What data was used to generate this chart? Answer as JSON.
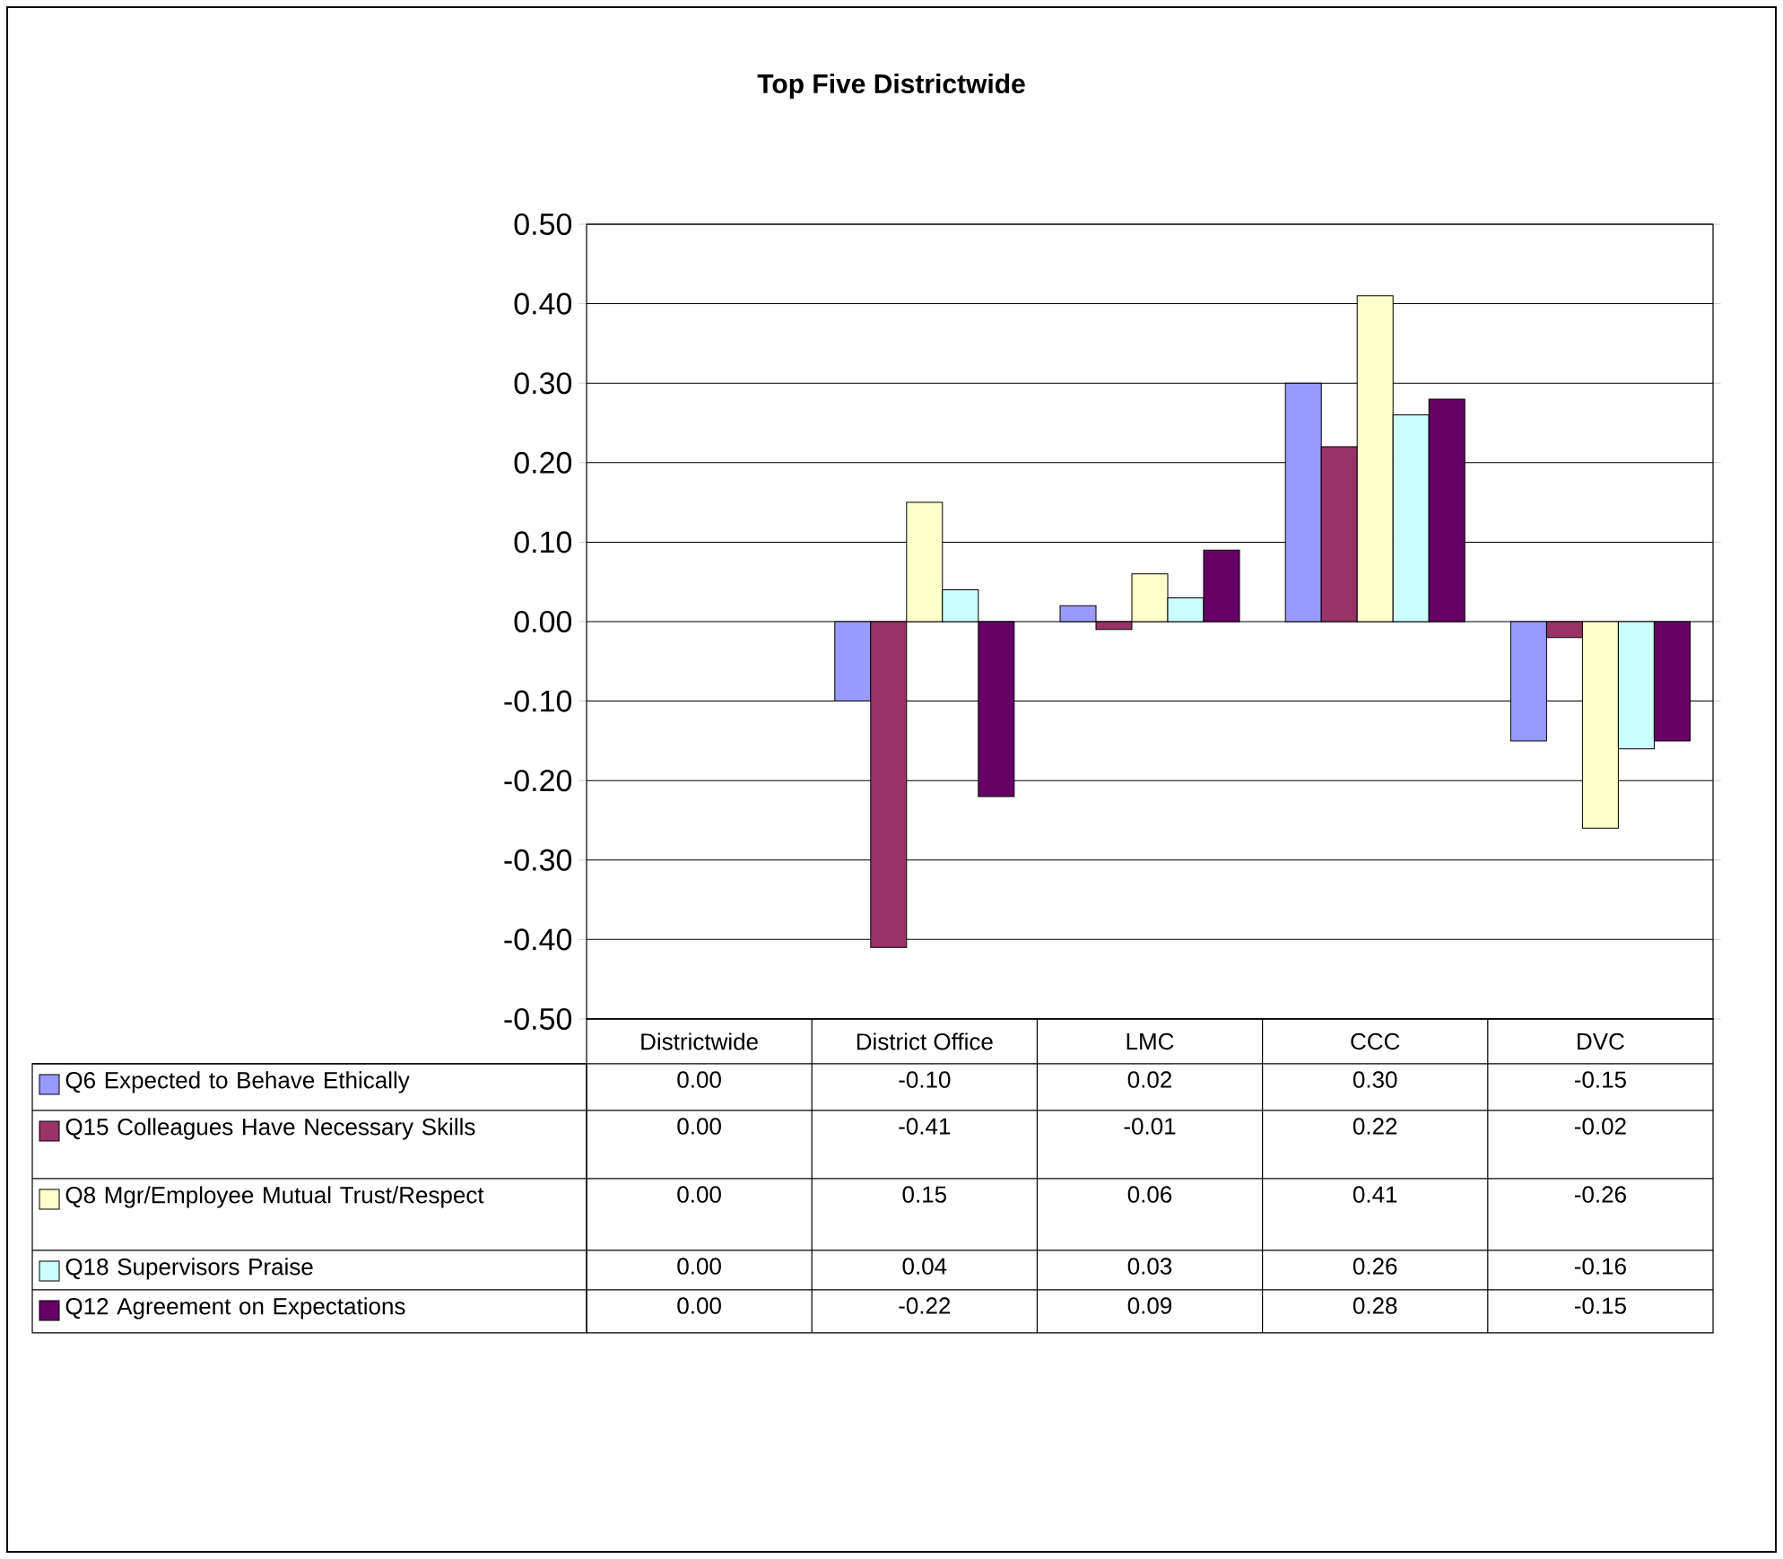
{
  "chart_data": {
    "type": "bar",
    "title": "Top Five Districtwide",
    "categories": [
      "Districtwide",
      "District Office",
      "LMC",
      "CCC",
      "DVC"
    ],
    "series": [
      {
        "name": "Q6 Expected to Behave Ethically",
        "color": "#9999ff",
        "values": [
          0.0,
          -0.1,
          0.02,
          0.3,
          -0.15
        ],
        "value_labels": [
          "0.00",
          "-0.10",
          "0.02",
          "0.30",
          "-0.15"
        ]
      },
      {
        "name": "Q15 Colleagues Have Necessary Skills",
        "color": "#993366",
        "values": [
          0.0,
          -0.41,
          -0.01,
          0.22,
          -0.02
        ],
        "value_labels": [
          "0.00",
          "-0.41",
          "-0.01",
          "0.22",
          "-0.02"
        ]
      },
      {
        "name": "Q8 Mgr/Employee Mutual Trust/Respect",
        "color": "#ffffcc",
        "values": [
          0.0,
          0.15,
          0.06,
          0.41,
          -0.26
        ],
        "value_labels": [
          "0.00",
          "0.15",
          "0.06",
          "0.41",
          "-0.26"
        ]
      },
      {
        "name": "Q18 Supervisors Praise",
        "color": "#ccffff",
        "values": [
          0.0,
          0.04,
          0.03,
          0.26,
          -0.16
        ],
        "value_labels": [
          "0.00",
          "0.04",
          "0.03",
          "0.26",
          "-0.16"
        ]
      },
      {
        "name": "Q12 Agreement on Expectations",
        "color": "#660066",
        "values": [
          0.0,
          -0.22,
          0.09,
          0.28,
          -0.15
        ],
        "value_labels": [
          "0.00",
          "-0.22",
          "0.09",
          "0.28",
          "-0.15"
        ]
      }
    ],
    "ylim": [
      -0.5,
      0.5
    ],
    "yticks": [
      {
        "value": -0.5,
        "label": "-0.50"
      },
      {
        "value": -0.4,
        "label": "-0.40"
      },
      {
        "value": -0.3,
        "label": "-0.30"
      },
      {
        "value": -0.2,
        "label": "-0.20"
      },
      {
        "value": -0.1,
        "label": "-0.10"
      },
      {
        "value": 0,
        "label": "0.00"
      },
      {
        "value": 0.1,
        "label": "0.10"
      },
      {
        "value": 0.2,
        "label": "0.20"
      },
      {
        "value": 0.3,
        "label": "0.30"
      },
      {
        "value": 0.4,
        "label": "0.40"
      },
      {
        "value": 0.5,
        "label": "0.50"
      }
    ],
    "grid": "y",
    "legend": "bottom left"
  }
}
